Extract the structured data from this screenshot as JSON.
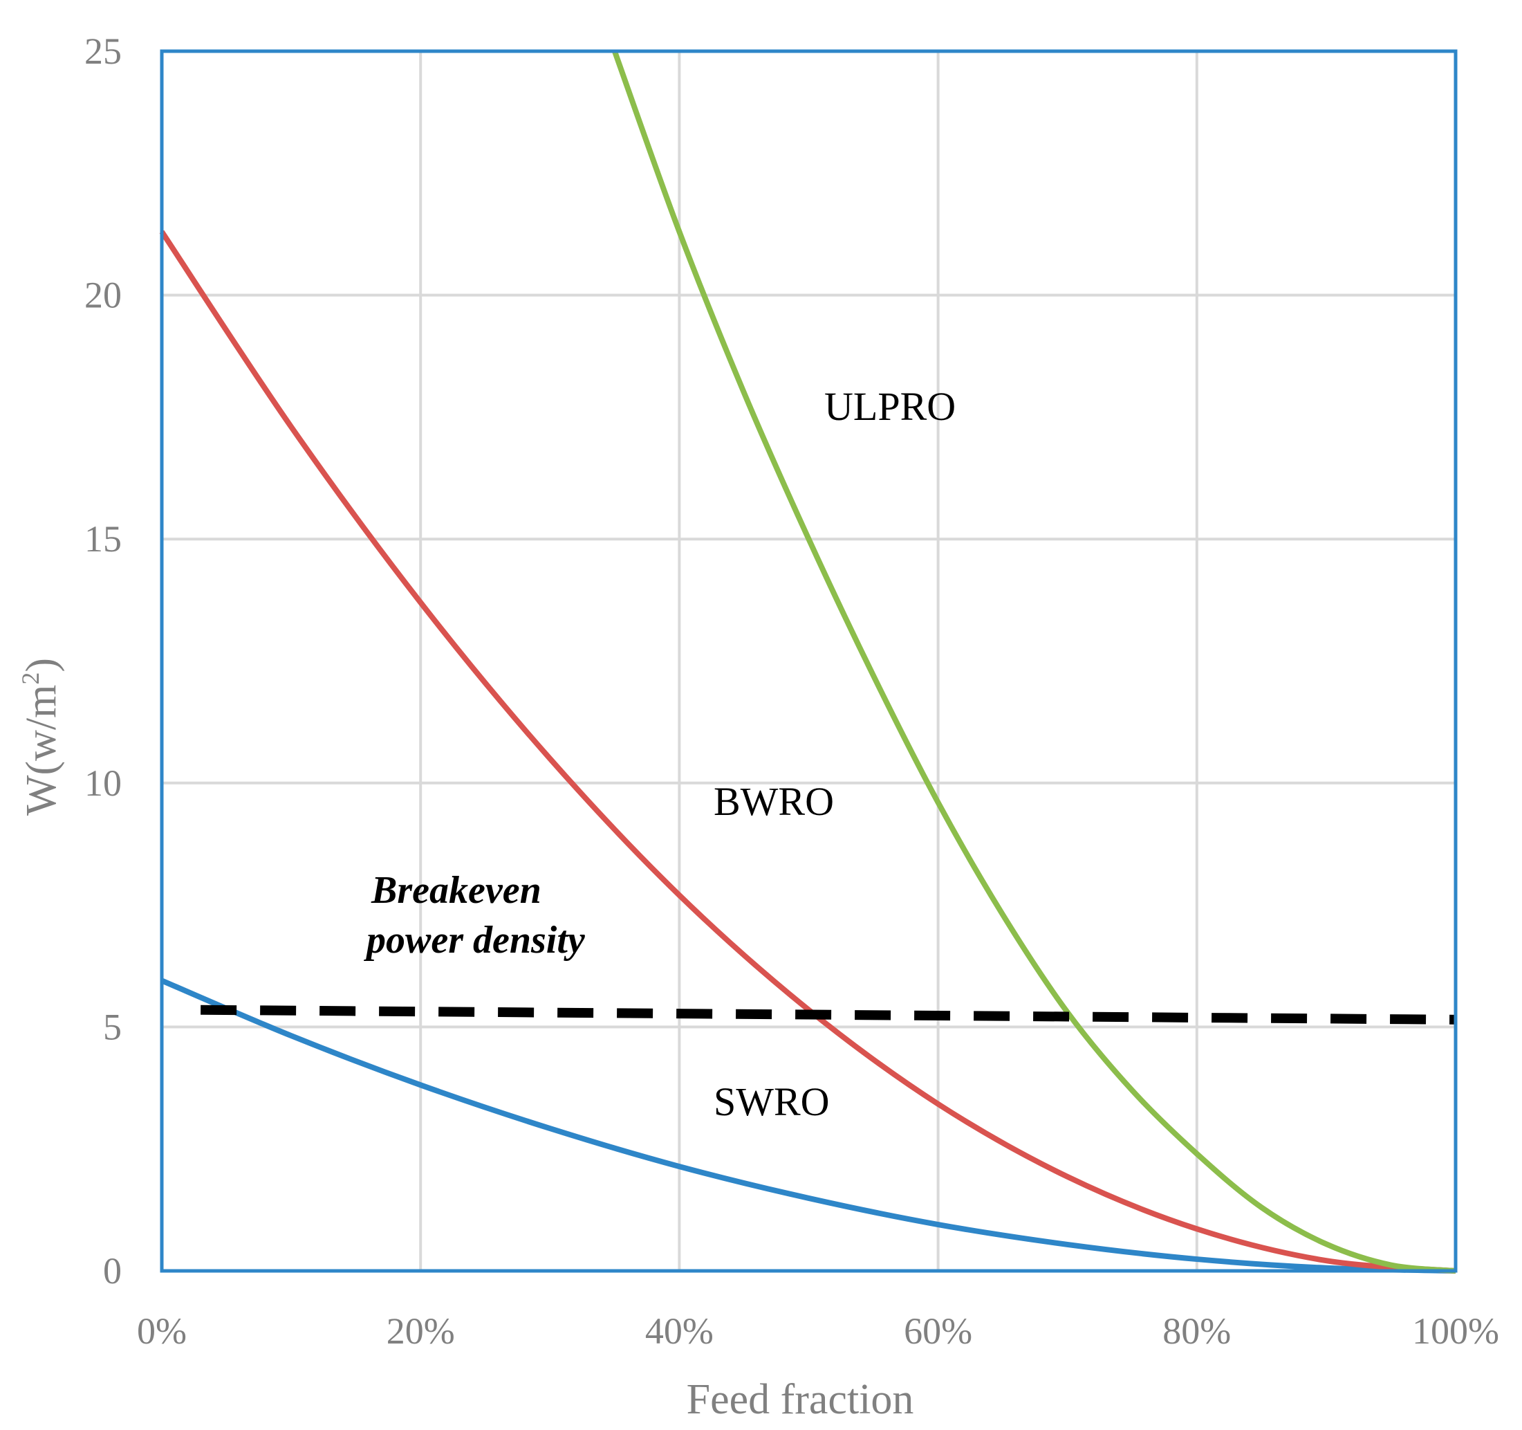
{
  "chart_data": {
    "type": "line",
    "title": "",
    "xlabel": "Feed fraction",
    "ylabel_main": "W(w/m",
    "ylabel_sup": "2",
    "ylabel_end": ")",
    "xlim": [
      0,
      100
    ],
    "ylim": [
      0,
      25
    ],
    "x_ticks": [
      0,
      20,
      40,
      60,
      80,
      100
    ],
    "x_tick_labels": [
      "0%",
      "20%",
      "40%",
      "60%",
      "80%",
      "100%"
    ],
    "y_ticks": [
      0,
      5,
      10,
      15,
      20,
      25
    ],
    "y_tick_labels": [
      "0",
      "5",
      "10",
      "15",
      "20",
      "25"
    ],
    "grid": true,
    "series": [
      {
        "name": "SWRO",
        "color": "#2e86c8",
        "x": [
          0,
          10,
          20,
          30,
          40,
          50,
          60,
          70,
          80,
          90,
          100
        ],
        "values": [
          5.95,
          4.82,
          3.81,
          2.92,
          2.14,
          1.49,
          0.95,
          0.54,
          0.24,
          0.06,
          0.0
        ]
      },
      {
        "name": "BWRO",
        "color": "#d9534f",
        "x": [
          0,
          10,
          20,
          30,
          40,
          50,
          60,
          70,
          80,
          90,
          100
        ],
        "values": [
          21.3,
          17.3,
          13.7,
          10.5,
          7.7,
          5.35,
          3.42,
          1.93,
          0.86,
          0.21,
          0.0
        ]
      },
      {
        "name": "ULPRO",
        "color": "#8cbd4b",
        "x": [
          35,
          40,
          45,
          50,
          55,
          60,
          65,
          70,
          75,
          80,
          85,
          90,
          95,
          100
        ],
        "values": [
          25.0,
          21.3,
          18.0,
          15.0,
          12.2,
          9.6,
          7.3,
          5.3,
          3.7,
          2.4,
          1.3,
          0.55,
          0.12,
          0.0
        ]
      },
      {
        "name": "Breakeven power density",
        "color": "#000000",
        "dashed": true,
        "x": [
          3,
          100
        ],
        "values": [
          5.35,
          5.15
        ]
      }
    ],
    "annotations": {
      "ulpro": "ULPRO",
      "bwro": "BWRO",
      "swro": "SWRO",
      "breakeven_line1": "Breakeven",
      "breakeven_line2": "power density"
    }
  }
}
